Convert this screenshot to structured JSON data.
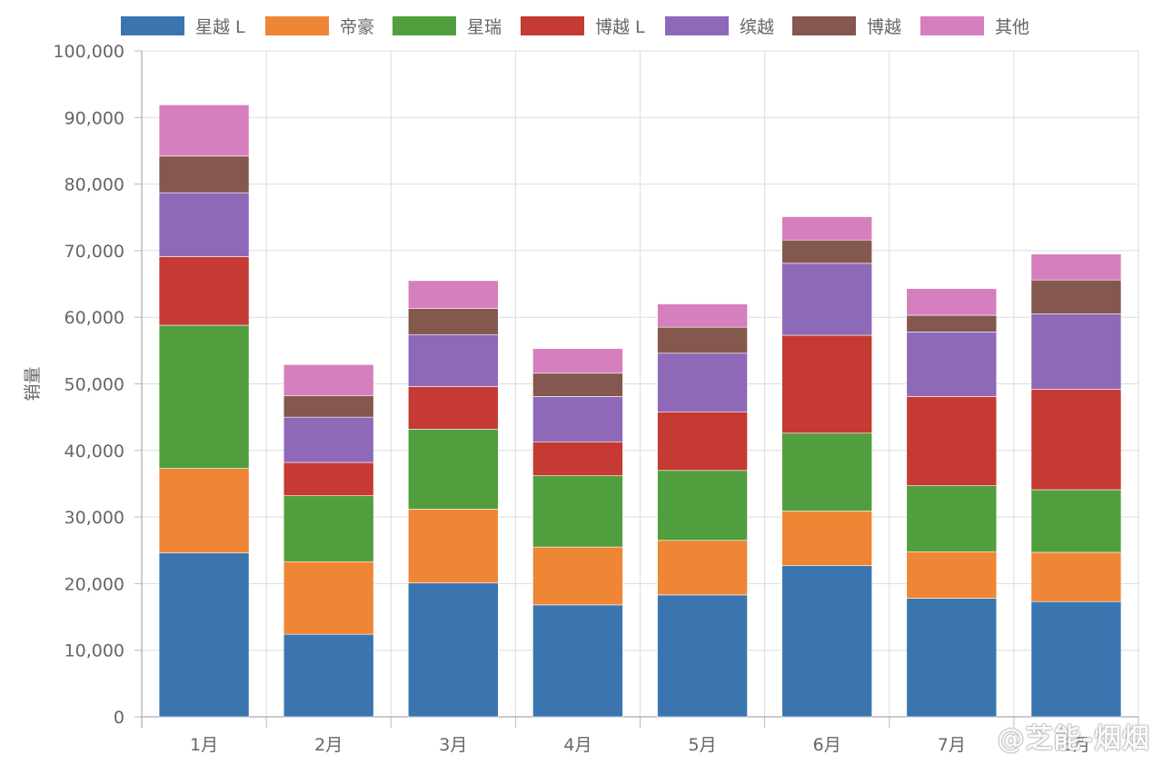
{
  "chart_data": {
    "type": "bar",
    "stacked": true,
    "ylabel": "销量",
    "ylim": [
      0,
      100000
    ],
    "yticks": [
      "0",
      "10,000",
      "20,000",
      "30,000",
      "40,000",
      "50,000",
      "60,000",
      "70,000",
      "80,000",
      "90,000",
      "100,000"
    ],
    "categories": [
      "1月",
      "2月",
      "3月",
      "4月",
      "5月",
      "6月",
      "7月",
      "8月"
    ],
    "legend_position": "top",
    "grid": true,
    "series": [
      {
        "name": "星越 L",
        "color": "#3b75af",
        "values": [
          24600,
          12400,
          20100,
          16800,
          18300,
          22700,
          17800,
          17300
        ]
      },
      {
        "name": "帝豪",
        "color": "#ef8636",
        "values": [
          12700,
          10900,
          11100,
          8700,
          8200,
          8200,
          7000,
          7400
        ]
      },
      {
        "name": "星瑞",
        "color": "#519e3e",
        "values": [
          21500,
          9900,
          12000,
          10700,
          10500,
          11700,
          9900,
          9400
        ]
      },
      {
        "name": "博越 L",
        "color": "#c53a32",
        "values": [
          10300,
          5000,
          6400,
          5100,
          8800,
          14700,
          13400,
          15100
        ]
      },
      {
        "name": "缤越",
        "color": "#8d69b8",
        "values": [
          9600,
          6800,
          7800,
          6800,
          8800,
          10800,
          9700,
          11300
        ]
      },
      {
        "name": "博越",
        "color": "#84584e",
        "values": [
          5500,
          3200,
          3900,
          3500,
          3900,
          3500,
          2500,
          5100
        ]
      },
      {
        "name": "其他",
        "color": "#d57fbe",
        "values": [
          7700,
          4700,
          4200,
          3700,
          3500,
          3500,
          4000,
          3900
        ]
      }
    ]
  },
  "watermark": "@芝能-烟烟"
}
